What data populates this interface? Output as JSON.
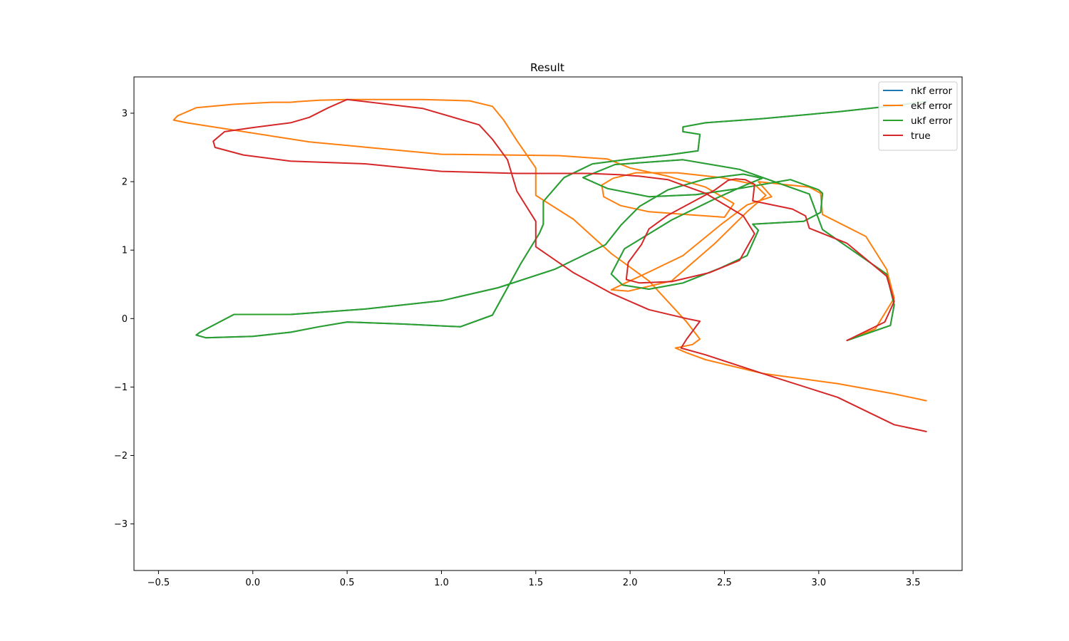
{
  "chart_data": {
    "type": "line",
    "title": "Result",
    "xlabel": "",
    "ylabel": "",
    "xlim": [
      -0.63,
      3.76
    ],
    "ylim": [
      -3.68,
      3.53
    ],
    "xticks": [
      -0.5,
      0.0,
      0.5,
      1.0,
      1.5,
      2.0,
      2.5,
      3.0,
      3.5
    ],
    "xtick_labels": [
      "−0.5",
      "0.0",
      "0.5",
      "1.0",
      "1.5",
      "2.0",
      "2.5",
      "3.0",
      "3.5"
    ],
    "yticks": [
      3,
      2,
      1,
      0,
      -1,
      -2,
      -3
    ],
    "ytick_labels": [
      "3",
      "2",
      "1",
      "0",
      "−1",
      "−2",
      "−3"
    ],
    "grid": false,
    "legend_position": "top-right",
    "series": [
      {
        "name": "nkf error",
        "color": "#1f77b4",
        "x": [
          3.15,
          3.38,
          3.4,
          3.36,
          3.02,
          2.95,
          2.58,
          2.28,
          1.92,
          1.75,
          1.88,
          2.1,
          2.35,
          2.6,
          2.85,
          3.0,
          3.02,
          3.01,
          2.92,
          2.65,
          2.68,
          2.62,
          2.48,
          2.28,
          2.1,
          1.96,
          1.9,
          1.97,
          2.22,
          2.45,
          2.62,
          2.7,
          2.6,
          2.4,
          2.2,
          2.05,
          1.95,
          1.87,
          1.6,
          1.3,
          1.0,
          0.6,
          0.2,
          -0.1,
          -0.28,
          -0.3,
          -0.25,
          0.0,
          0.2,
          0.35,
          0.5,
          0.8,
          1.1,
          1.27,
          1.35,
          1.42,
          1.52,
          1.54,
          1.54,
          1.65,
          1.8,
          2.0,
          2.2,
          2.36,
          2.37,
          2.28,
          2.28,
          2.4,
          2.7,
          3.1,
          3.4,
          3.57
        ],
        "y": [
          -0.32,
          -0.1,
          0.2,
          0.65,
          1.3,
          1.82,
          2.18,
          2.32,
          2.25,
          2.06,
          1.9,
          1.78,
          1.81,
          1.91,
          2.03,
          1.88,
          1.83,
          1.55,
          1.42,
          1.38,
          1.29,
          0.92,
          0.74,
          0.52,
          0.43,
          0.49,
          0.65,
          1.02,
          1.44,
          1.75,
          1.96,
          2.05,
          2.11,
          2.04,
          1.88,
          1.64,
          1.36,
          1.08,
          0.72,
          0.45,
          0.26,
          0.14,
          0.06,
          0.06,
          -0.2,
          -0.24,
          -0.28,
          -0.26,
          -0.2,
          -0.12,
          -0.05,
          -0.08,
          -0.12,
          0.05,
          0.45,
          0.8,
          1.25,
          1.38,
          1.71,
          2.06,
          2.26,
          2.33,
          2.39,
          2.45,
          2.69,
          2.73,
          2.8,
          2.86,
          2.92,
          3.02,
          3.11,
          3.17
        ]
      },
      {
        "name": "ekf error",
        "color": "#ff7f0e",
        "x": [
          3.15,
          3.3,
          3.4,
          3.36,
          3.25,
          3.02,
          3.01,
          2.95,
          2.68,
          2.75,
          2.62,
          2.48,
          2.28,
          2.1,
          1.96,
          1.9,
          1.99,
          2.22,
          2.45,
          2.62,
          2.72,
          2.66,
          2.48,
          2.25,
          2.03,
          1.91,
          1.85,
          1.86,
          1.95,
          2.1,
          2.3,
          2.5,
          2.55,
          2.4,
          2.2,
          2.0,
          1.88,
          1.62,
          1.0,
          0.3,
          -0.35,
          -0.42,
          -0.4,
          -0.3,
          -0.1,
          0.1,
          0.2,
          0.24,
          0.35,
          0.5,
          0.9,
          1.15,
          1.27,
          1.33,
          1.4,
          1.5,
          1.5,
          1.7,
          1.9,
          2.1,
          2.3,
          2.37,
          2.33,
          2.24,
          2.3,
          2.4,
          2.7,
          3.1,
          3.4,
          3.57
        ],
        "y": [
          -0.32,
          -0.15,
          0.3,
          0.72,
          1.2,
          1.52,
          1.83,
          1.92,
          2.0,
          1.78,
          1.66,
          1.37,
          0.92,
          0.68,
          0.5,
          0.42,
          0.4,
          0.55,
          1.1,
          1.56,
          1.8,
          1.96,
          2.06,
          2.13,
          2.13,
          2.05,
          1.95,
          1.78,
          1.65,
          1.56,
          1.52,
          1.48,
          1.68,
          1.92,
          2.08,
          2.2,
          2.33,
          2.38,
          2.4,
          2.58,
          2.86,
          2.9,
          2.96,
          3.08,
          3.13,
          3.16,
          3.16,
          3.17,
          3.19,
          3.2,
          3.2,
          3.18,
          3.1,
          2.9,
          2.6,
          2.2,
          1.8,
          1.45,
          0.95,
          0.55,
          -0.05,
          -0.3,
          -0.38,
          -0.43,
          -0.5,
          -0.6,
          -0.8,
          -0.95,
          -1.1,
          -1.2
        ]
      },
      {
        "name": "ukf error",
        "color": "#2ca02c",
        "x": [
          3.15,
          3.38,
          3.4,
          3.36,
          3.02,
          2.95,
          2.58,
          2.28,
          1.92,
          1.75,
          1.88,
          2.1,
          2.35,
          2.6,
          2.85,
          3.0,
          3.02,
          3.01,
          2.92,
          2.65,
          2.68,
          2.62,
          2.48,
          2.28,
          2.1,
          1.96,
          1.9,
          1.97,
          2.22,
          2.45,
          2.62,
          2.7,
          2.6,
          2.4,
          2.2,
          2.05,
          1.95,
          1.87,
          1.6,
          1.3,
          1.0,
          0.6,
          0.2,
          -0.1,
          -0.28,
          -0.3,
          -0.25,
          0.0,
          0.2,
          0.35,
          0.5,
          0.8,
          1.1,
          1.27,
          1.35,
          1.42,
          1.52,
          1.54,
          1.54,
          1.65,
          1.8,
          2.0,
          2.2,
          2.36,
          2.37,
          2.28,
          2.28,
          2.4,
          2.7,
          3.1,
          3.4,
          3.57
        ],
        "y": [
          -0.32,
          -0.1,
          0.2,
          0.65,
          1.3,
          1.82,
          2.18,
          2.32,
          2.25,
          2.06,
          1.9,
          1.78,
          1.81,
          1.91,
          2.03,
          1.88,
          1.83,
          1.55,
          1.42,
          1.38,
          1.29,
          0.92,
          0.74,
          0.52,
          0.43,
          0.49,
          0.65,
          1.02,
          1.44,
          1.75,
          1.96,
          2.05,
          2.11,
          2.04,
          1.88,
          1.64,
          1.36,
          1.08,
          0.72,
          0.45,
          0.26,
          0.14,
          0.06,
          0.06,
          -0.2,
          -0.24,
          -0.28,
          -0.26,
          -0.2,
          -0.12,
          -0.05,
          -0.08,
          -0.12,
          0.05,
          0.45,
          0.8,
          1.25,
          1.38,
          1.71,
          2.06,
          2.26,
          2.33,
          2.39,
          2.45,
          2.69,
          2.73,
          2.8,
          2.86,
          2.92,
          3.02,
          3.11,
          3.17
        ]
      },
      {
        "name": "true",
        "color": "#d62728",
        "x": [
          3.15,
          3.35,
          3.4,
          3.36,
          3.15,
          2.95,
          2.93,
          2.86,
          2.65,
          2.66,
          2.61,
          2.56,
          2.52,
          2.45,
          2.2,
          2.1,
          2.06,
          1.99,
          1.98,
          2.05,
          2.22,
          2.42,
          2.58,
          2.66,
          2.6,
          2.4,
          2.2,
          2.05,
          1.95,
          1.78,
          1.4,
          1.0,
          0.6,
          0.2,
          -0.05,
          -0.2,
          -0.21,
          -0.15,
          0.0,
          0.2,
          0.3,
          0.4,
          0.5,
          0.9,
          1.2,
          1.27,
          1.35,
          1.4,
          1.5,
          1.5,
          1.7,
          1.9,
          2.1,
          2.3,
          2.37,
          2.3,
          2.27,
          2.4,
          2.7,
          3.1,
          3.4,
          3.57
        ],
        "y": [
          -0.32,
          -0.05,
          0.25,
          0.62,
          1.1,
          1.32,
          1.5,
          1.6,
          1.72,
          1.96,
          2.03,
          2.04,
          2.02,
          1.88,
          1.51,
          1.31,
          1.08,
          0.82,
          0.57,
          0.52,
          0.54,
          0.67,
          0.85,
          1.24,
          1.5,
          1.83,
          2.03,
          2.08,
          2.1,
          2.12,
          2.12,
          2.15,
          2.26,
          2.3,
          2.39,
          2.5,
          2.59,
          2.73,
          2.79,
          2.86,
          2.94,
          3.08,
          3.2,
          3.07,
          2.83,
          2.62,
          2.32,
          1.86,
          1.42,
          1.05,
          0.67,
          0.37,
          0.13,
          0.0,
          -0.04,
          -0.3,
          -0.43,
          -0.53,
          -0.8,
          -1.15,
          -1.55,
          -1.65
        ]
      }
    ]
  }
}
